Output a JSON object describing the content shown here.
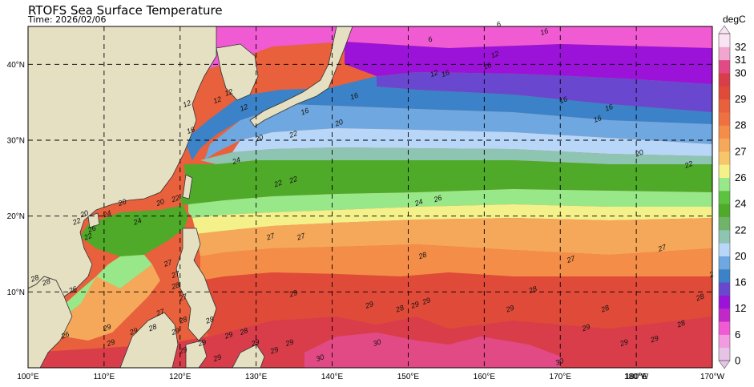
{
  "chart_data": {
    "type": "heatmap",
    "title": "RTOFS Sea Surface Temperature",
    "subtitle": "Time: 2026/02/06",
    "variable_unit": "degC",
    "x_ticks": [
      {
        "lon": 100,
        "label": "100°E"
      },
      {
        "lon": 110,
        "label": "110°E"
      },
      {
        "lon": 120,
        "label": "120°E"
      },
      {
        "lon": 130,
        "label": "130°E"
      },
      {
        "lon": 140,
        "label": "140°E"
      },
      {
        "lon": 150,
        "label": "150°E"
      },
      {
        "lon": 160,
        "label": "160°E"
      },
      {
        "lon": 170,
        "label": "170°E"
      },
      {
        "lon": 180,
        "label": "180°W"
      },
      {
        "lon": 180,
        "label": "180°E"
      },
      {
        "lon": 190,
        "label": "170°W"
      }
    ],
    "y_ticks": [
      {
        "lat": 10,
        "label": "10°N"
      },
      {
        "lat": 20,
        "label": "20°N"
      },
      {
        "lat": 30,
        "label": "30°N"
      },
      {
        "lat": 40,
        "label": "40°N"
      }
    ],
    "xlim": [
      100,
      190
    ],
    "ylim": [
      0,
      45
    ],
    "grid": true,
    "colorbar": {
      "ticks": [
        0,
        6,
        12,
        16,
        20,
        22,
        24,
        26,
        27,
        28,
        29,
        30,
        31,
        32
      ],
      "levels": [
        {
          "from": 0,
          "to": 3,
          "color": "#e6c4e6"
        },
        {
          "from": 3,
          "to": 6,
          "color": "#f39be0"
        },
        {
          "from": 6,
          "to": 9,
          "color": "#f05ad2"
        },
        {
          "from": 9,
          "to": 12,
          "color": "#c028c8"
        },
        {
          "from": 12,
          "to": 14,
          "color": "#9b12d8"
        },
        {
          "from": 14,
          "to": 16,
          "color": "#6a47cf"
        },
        {
          "from": 16,
          "to": 18,
          "color": "#3b82c8"
        },
        {
          "from": 18,
          "to": 20,
          "color": "#6fa8e0"
        },
        {
          "from": 20,
          "to": 21,
          "color": "#b8d6f7"
        },
        {
          "from": 21,
          "to": 22,
          "color": "#8ec4b2"
        },
        {
          "from": 22,
          "to": 23,
          "color": "#6fb46a"
        },
        {
          "from": 23,
          "to": 24,
          "color": "#4faa2a"
        },
        {
          "from": 24,
          "to": 25,
          "color": "#5cc23f"
        },
        {
          "from": 25,
          "to": 26,
          "color": "#98e88a"
        },
        {
          "from": 26,
          "to": 26.5,
          "color": "#f4f08a"
        },
        {
          "from": 26.5,
          "to": 27,
          "color": "#f7c66a"
        },
        {
          "from": 27,
          "to": 27.5,
          "color": "#f5a85a"
        },
        {
          "from": 27.5,
          "to": 28,
          "color": "#f38d48"
        },
        {
          "from": 28,
          "to": 28.5,
          "color": "#ef7040"
        },
        {
          "from": 28.5,
          "to": 29,
          "color": "#e8603c"
        },
        {
          "from": 29,
          "to": 29.5,
          "color": "#e04a38"
        },
        {
          "from": 29.5,
          "to": 30,
          "color": "#d93d4a"
        },
        {
          "from": 30,
          "to": 31,
          "color": "#e24a86"
        },
        {
          "from": 31,
          "to": 32,
          "color": "#f0a6d0"
        },
        {
          "from": 32,
          "to": 33,
          "color": "#f8e4f2"
        }
      ]
    },
    "contour_labels": [
      {
        "lon": 121.5,
        "lat": 31,
        "text": "16"
      },
      {
        "lon": 128.5,
        "lat": 34,
        "text": "12"
      },
      {
        "lon": 136.5,
        "lat": 33.5,
        "text": "16"
      },
      {
        "lon": 141,
        "lat": 32,
        "text": "20"
      },
      {
        "lon": 130.5,
        "lat": 30,
        "text": "20"
      },
      {
        "lon": 135,
        "lat": 30.5,
        "text": "22"
      },
      {
        "lon": 143,
        "lat": 35.5,
        "text": "16"
      },
      {
        "lon": 155,
        "lat": 38.5,
        "text": "16"
      },
      {
        "lon": 160.5,
        "lat": 39.5,
        "text": "16"
      },
      {
        "lon": 161.5,
        "lat": 41,
        "text": "12"
      },
      {
        "lon": 153.5,
        "lat": 38.5,
        "text": "12"
      },
      {
        "lon": 170.5,
        "lat": 35,
        "text": "16"
      },
      {
        "lon": 175,
        "lat": 32.5,
        "text": "16"
      },
      {
        "lon": 176.5,
        "lat": 34,
        "text": "16"
      },
      {
        "lon": 162,
        "lat": 45,
        "text": "6"
      },
      {
        "lon": 168,
        "lat": 44,
        "text": "16"
      },
      {
        "lon": 153,
        "lat": 43,
        "text": "6"
      },
      {
        "lon": 180.5,
        "lat": 28,
        "text": "20"
      },
      {
        "lon": 187,
        "lat": 26.5,
        "text": "22"
      },
      {
        "lon": 127.5,
        "lat": 27,
        "text": "24"
      },
      {
        "lon": 133,
        "lat": 24,
        "text": "22"
      },
      {
        "lon": 135,
        "lat": 24.5,
        "text": "22"
      },
      {
        "lon": 119.5,
        "lat": 22,
        "text": "22"
      },
      {
        "lon": 117.5,
        "lat": 21.5,
        "text": "20"
      },
      {
        "lon": 112.5,
        "lat": 21.5,
        "text": "20"
      },
      {
        "lon": 114.5,
        "lat": 19,
        "text": "24"
      },
      {
        "lon": 110.5,
        "lat": 20,
        "text": "24"
      },
      {
        "lon": 107.5,
        "lat": 20,
        "text": "20"
      },
      {
        "lon": 106.5,
        "lat": 19,
        "text": "22"
      },
      {
        "lon": 108,
        "lat": 17,
        "text": "22"
      },
      {
        "lon": 108.5,
        "lat": 18,
        "text": "26"
      },
      {
        "lon": 151.5,
        "lat": 21.5,
        "text": "24"
      },
      {
        "lon": 154,
        "lat": 22,
        "text": "26"
      },
      {
        "lon": 132,
        "lat": 17,
        "text": "27"
      },
      {
        "lon": 136,
        "lat": 17,
        "text": "27"
      },
      {
        "lon": 118.5,
        "lat": 13.5,
        "text": "27"
      },
      {
        "lon": 119.5,
        "lat": 12,
        "text": "27"
      },
      {
        "lon": 119.5,
        "lat": 10.5,
        "text": "28"
      },
      {
        "lon": 120.5,
        "lat": 9,
        "text": "27"
      },
      {
        "lon": 117.5,
        "lat": 7,
        "text": "27"
      },
      {
        "lon": 120.5,
        "lat": 6,
        "text": "28"
      },
      {
        "lon": 124,
        "lat": 6,
        "text": "28"
      },
      {
        "lon": 119.5,
        "lat": 4.5,
        "text": "29"
      },
      {
        "lon": 116.5,
        "lat": 5,
        "text": "28"
      },
      {
        "lon": 114,
        "lat": 4.5,
        "text": "29"
      },
      {
        "lon": 111,
        "lat": 3,
        "text": "29"
      },
      {
        "lon": 110.5,
        "lat": 5,
        "text": "29"
      },
      {
        "lon": 105,
        "lat": 4,
        "text": "26"
      },
      {
        "lon": 101,
        "lat": 11.5,
        "text": "28"
      },
      {
        "lon": 102.5,
        "lat": 11,
        "text": "28"
      },
      {
        "lon": 106,
        "lat": 10,
        "text": "26"
      },
      {
        "lon": 120.5,
        "lat": 2,
        "text": "29"
      },
      {
        "lon": 123,
        "lat": 3,
        "text": "29"
      },
      {
        "lon": 125,
        "lat": 1,
        "text": "29"
      },
      {
        "lon": 126.5,
        "lat": 4,
        "text": "29"
      },
      {
        "lon": 128.5,
        "lat": 4.5,
        "text": "28"
      },
      {
        "lon": 130,
        "lat": 3,
        "text": "29"
      },
      {
        "lon": 132.5,
        "lat": 2,
        "text": "29"
      },
      {
        "lon": 134.5,
        "lat": 3,
        "text": "29"
      },
      {
        "lon": 138.5,
        "lat": 1,
        "text": "30"
      },
      {
        "lon": 146,
        "lat": 3,
        "text": "30"
      },
      {
        "lon": 135,
        "lat": 9.5,
        "text": "29"
      },
      {
        "lon": 145,
        "lat": 8,
        "text": "29"
      },
      {
        "lon": 151,
        "lat": 8,
        "text": "29"
      },
      {
        "lon": 152.5,
        "lat": 8.5,
        "text": "29"
      },
      {
        "lon": 149,
        "lat": 7.5,
        "text": "28"
      },
      {
        "lon": 152,
        "lat": 14.5,
        "text": "28"
      },
      {
        "lon": 163.5,
        "lat": 7.5,
        "text": "29"
      },
      {
        "lon": 166.5,
        "lat": 10,
        "text": "28"
      },
      {
        "lon": 171.5,
        "lat": 14,
        "text": "27"
      },
      {
        "lon": 176,
        "lat": 7.5,
        "text": "28"
      },
      {
        "lon": 173.5,
        "lat": 5,
        "text": "29"
      },
      {
        "lon": 183.5,
        "lat": 15.5,
        "text": "27"
      },
      {
        "lon": 188.5,
        "lat": 9,
        "text": "28"
      },
      {
        "lon": 190,
        "lat": 12,
        "text": "2"
      },
      {
        "lon": 186,
        "lat": 5.5,
        "text": "28"
      },
      {
        "lon": 182.5,
        "lat": 3.5,
        "text": "29"
      },
      {
        "lon": 170,
        "lat": 0.5,
        "text": "30"
      },
      {
        "lon": 178.5,
        "lat": 3,
        "text": "29"
      },
      {
        "lon": 125,
        "lat": 35,
        "text": "12"
      },
      {
        "lon": 126.5,
        "lat": 36,
        "text": "12"
      },
      {
        "lon": 121,
        "lat": 34.5,
        "text": "12"
      }
    ]
  }
}
